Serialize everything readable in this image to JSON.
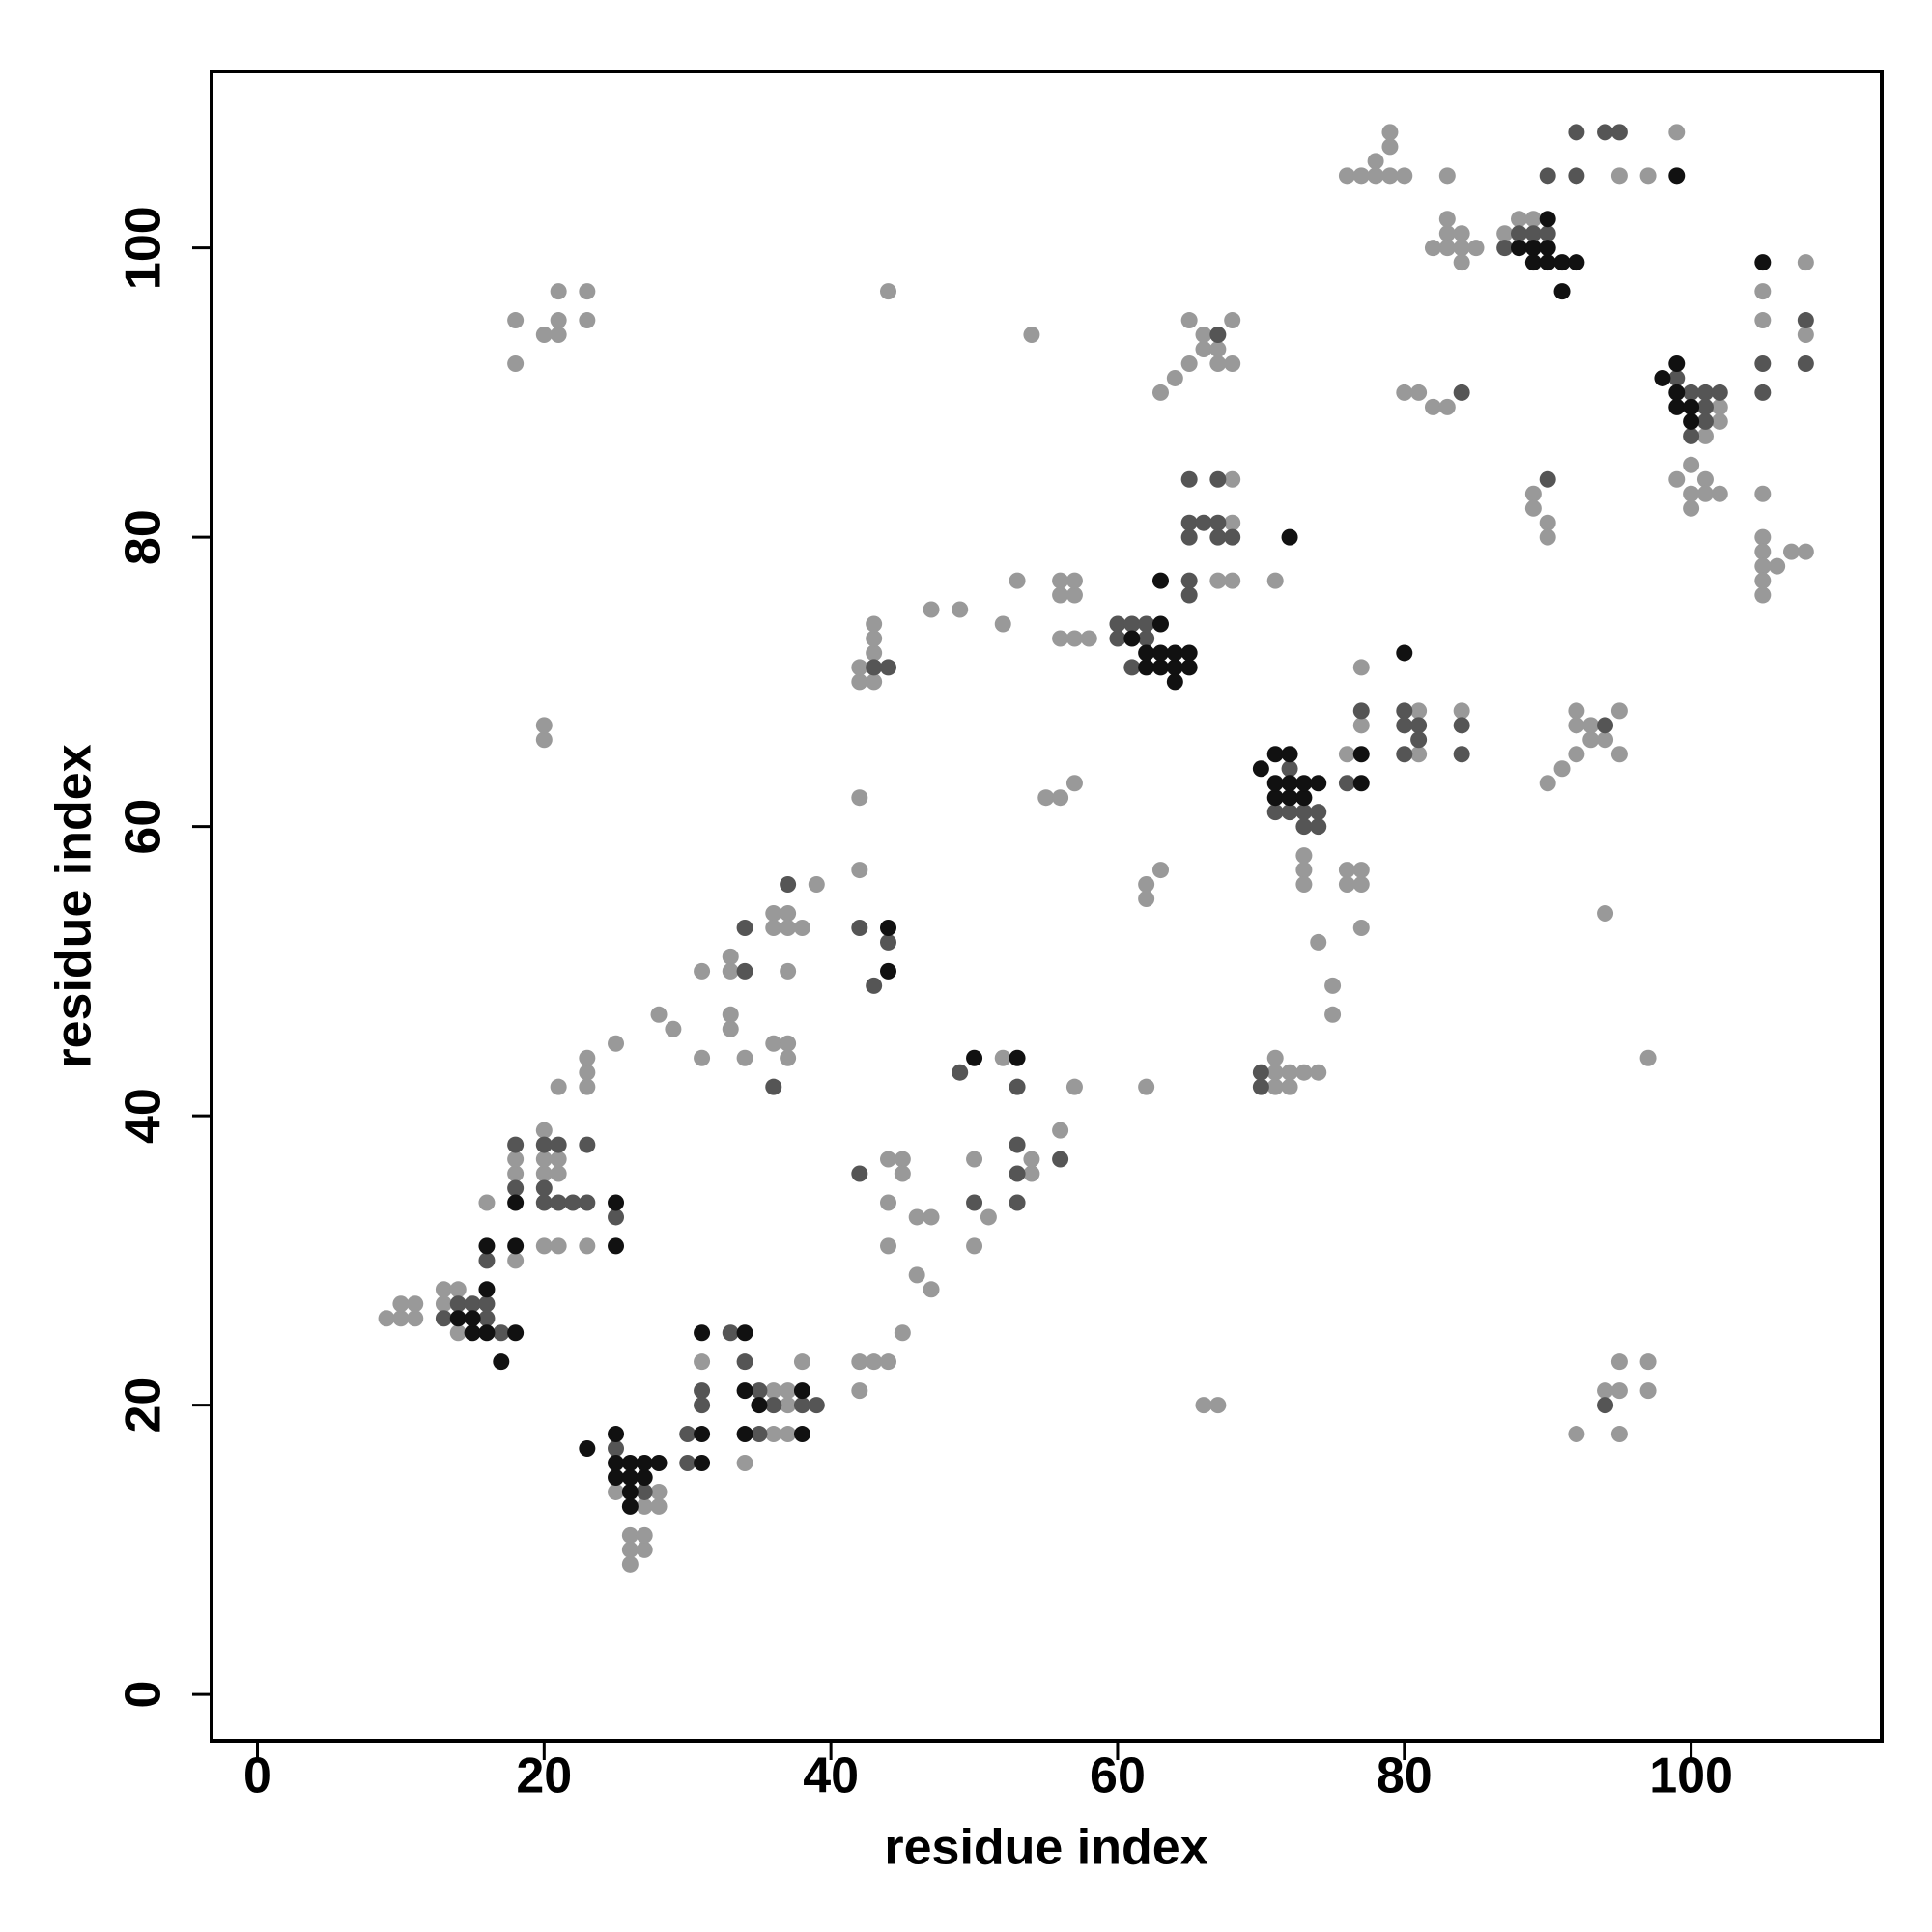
{
  "chart_data": {
    "type": "scatter",
    "xlabel": "residue index",
    "ylabel": "residue index",
    "xlim": [
      -3.2,
      113.3
    ],
    "ylim": [
      -3.2,
      112.2
    ],
    "xticks": [
      0,
      20,
      40,
      60,
      80,
      100
    ],
    "yticks": [
      0,
      20,
      40,
      60,
      80,
      100
    ],
    "grid": false,
    "series": [
      {
        "color": "#999999",
        "x": [
          9,
          10,
          10,
          11,
          11,
          13,
          13,
          14,
          14,
          18,
          16,
          18,
          18,
          20,
          21,
          23,
          20,
          20,
          21,
          21,
          20,
          26,
          26,
          26,
          27,
          27,
          27,
          28,
          28,
          25,
          31,
          34,
          36,
          36,
          37,
          37,
          37,
          38,
          23,
          23,
          23,
          21,
          25,
          28,
          29,
          31,
          31,
          33,
          33,
          33,
          33,
          34,
          36,
          36,
          37,
          37,
          38,
          39,
          37,
          36,
          37,
          37,
          42,
          42,
          42,
          42,
          43,
          43,
          43,
          43,
          44,
          47,
          49,
          52,
          53,
          56,
          56,
          57,
          57,
          56,
          57,
          58,
          44,
          45,
          45,
          44,
          44,
          46,
          47,
          46,
          47,
          45,
          42,
          43,
          44,
          42,
          50,
          51,
          50,
          52,
          54,
          54,
          56,
          57,
          55,
          56,
          57,
          54,
          62,
          62,
          62,
          63,
          63,
          64,
          65,
          65,
          66,
          66,
          67,
          67,
          68,
          68,
          68,
          68,
          67,
          68,
          71,
          73,
          73,
          73,
          74,
          75,
          75,
          71,
          72,
          71,
          71,
          72,
          73,
          74,
          66,
          67,
          76,
          77,
          77,
          76,
          77,
          76,
          77,
          77,
          81,
          81,
          84,
          76,
          77,
          78,
          78,
          79,
          79,
          79,
          80,
          83,
          83,
          83,
          83,
          82,
          84,
          84,
          84,
          85,
          80,
          81,
          82,
          83,
          89,
          89,
          90,
          90,
          87,
          88,
          89,
          95,
          97,
          99,
          101,
          102,
          102,
          99,
          100,
          101,
          100,
          100,
          101,
          102,
          105,
          105,
          108,
          108,
          105,
          105,
          105,
          105,
          105,
          105,
          106,
          107,
          108,
          90,
          91,
          92,
          92,
          92,
          93,
          94,
          95,
          95,
          93,
          94,
          97,
          92,
          94,
          95,
          95,
          95,
          97,
          97,
          18,
          18,
          20,
          21,
          21,
          21,
          23,
          23,
          20,
          20
        ],
        "values": [
          26,
          26,
          27,
          26,
          27,
          27,
          28,
          25,
          28,
          30,
          34,
          36,
          37,
          31,
          31,
          31,
          36,
          37,
          36,
          37,
          39,
          9,
          10,
          11,
          10,
          11,
          13,
          13,
          14,
          14,
          23,
          16,
          18,
          21,
          18,
          21,
          20,
          23,
          42,
          43,
          44,
          42,
          45,
          47,
          46,
          44,
          50,
          47,
          46,
          51,
          50,
          44,
          54,
          53,
          54,
          53,
          53,
          56,
          50,
          45,
          45,
          44,
          62,
          57,
          70,
          71,
          70,
          72,
          73,
          74,
          97,
          75,
          75,
          74,
          77,
          76,
          77,
          76,
          77,
          73,
          73,
          73,
          37,
          37,
          36,
          34,
          31,
          33,
          33,
          29,
          28,
          25,
          23,
          23,
          23,
          21,
          37,
          33,
          31,
          44,
          36,
          37,
          39,
          42,
          62,
          62,
          63,
          94,
          42,
          55,
          56,
          57,
          90,
          91,
          92,
          95,
          93,
          94,
          92,
          93,
          92,
          95,
          84,
          81,
          77,
          77,
          77,
          58,
          57,
          56,
          52,
          49,
          47,
          42,
          42,
          43,
          44,
          43,
          43,
          43,
          20,
          20,
          65,
          67,
          71,
          57,
          57,
          56,
          56,
          53,
          68,
          65,
          68,
          105,
          105,
          105,
          106,
          105,
          107,
          108,
          105,
          105,
          102,
          101,
          100,
          100,
          101,
          100,
          99,
          100,
          90,
          90,
          89,
          89,
          83,
          82,
          81,
          80,
          101,
          102,
          102,
          105,
          105,
          108,
          87,
          89,
          88,
          84,
          85,
          84,
          83,
          82,
          83,
          83,
          97,
          95,
          99,
          94,
          83,
          80,
          79,
          78,
          77,
          76,
          78,
          79,
          79,
          63,
          64,
          65,
          67,
          68,
          67,
          66,
          68,
          65,
          66,
          54,
          44,
          18,
          21,
          21,
          23,
          18,
          23,
          21,
          92,
          95,
          94,
          94,
          95,
          97,
          95,
          97,
          66,
          67
        ]
      },
      {
        "color": "#555555",
        "x": [
          13,
          14,
          15,
          16,
          16,
          16,
          17,
          18,
          18,
          20,
          20,
          20,
          21,
          21,
          22,
          23,
          23,
          25,
          25,
          27,
          30,
          30,
          31,
          31,
          33,
          34,
          35,
          35,
          36,
          38,
          39,
          34,
          34,
          37,
          36,
          42,
          43,
          44,
          43,
          44,
          42,
          50,
          49,
          53,
          53,
          53,
          53,
          56,
          60,
          60,
          61,
          62,
          62,
          61,
          65,
          65,
          67,
          65,
          65,
          65,
          66,
          67,
          67,
          67,
          68,
          71,
          72,
          73,
          73,
          74,
          74,
          72,
          70,
          70,
          76,
          77,
          80,
          80,
          80,
          81,
          81,
          84,
          84,
          84,
          90,
          87,
          88,
          89,
          90,
          90,
          92,
          92,
          94,
          95,
          99,
          100,
          101,
          101,
          102,
          101,
          100,
          105,
          105,
          108,
          108,
          94,
          94
        ],
        "values": [
          26,
          27,
          27,
          26,
          27,
          30,
          25,
          38,
          35,
          34,
          35,
          38,
          34,
          38,
          34,
          34,
          38,
          33,
          17,
          14,
          16,
          18,
          21,
          20,
          25,
          23,
          18,
          21,
          20,
          20,
          20,
          50,
          53,
          56,
          42,
          53,
          49,
          52,
          71,
          71,
          36,
          34,
          43,
          42,
          38,
          36,
          34,
          37,
          73,
          74,
          74,
          73,
          74,
          71,
          77,
          76,
          94,
          84,
          81,
          80,
          81,
          84,
          81,
          80,
          80,
          61,
          61,
          60,
          61,
          60,
          61,
          64,
          42,
          43,
          63,
          68,
          68,
          67,
          65,
          67,
          66,
          67,
          65,
          90,
          84,
          100,
          101,
          101,
          101,
          105,
          105,
          108,
          108,
          108,
          91,
          90,
          90,
          89,
          90,
          88,
          87,
          92,
          90,
          95,
          92,
          67,
          20
        ]
      },
      {
        "color": "#111111",
        "x": [
          14,
          15,
          15,
          16,
          16,
          17,
          18,
          18,
          18,
          25,
          25,
          16,
          23,
          25,
          25,
          25,
          26,
          26,
          26,
          27,
          28,
          26,
          27,
          31,
          31,
          31,
          34,
          34,
          34,
          35,
          38,
          38,
          44,
          44,
          50,
          53,
          61,
          62,
          62,
          63,
          63,
          63,
          64,
          64,
          65,
          65,
          64,
          63,
          72,
          70,
          71,
          71,
          72,
          72,
          72,
          73,
          73,
          74,
          71,
          77,
          77,
          80,
          88,
          89,
          89,
          90,
          91,
          92,
          91,
          90,
          90,
          99,
          98,
          99,
          99,
          99,
          100,
          100,
          105
        ],
        "values": [
          26,
          25,
          26,
          25,
          28,
          23,
          25,
          34,
          31,
          31,
          34,
          31,
          17,
          15,
          16,
          18,
          14,
          15,
          16,
          16,
          16,
          13,
          15,
          25,
          18,
          16,
          18,
          21,
          25,
          20,
          18,
          21,
          53,
          50,
          44,
          44,
          73,
          71,
          72,
          71,
          72,
          74,
          71,
          72,
          71,
          72,
          70,
          77,
          80,
          64,
          62,
          65,
          62,
          63,
          65,
          62,
          63,
          63,
          63,
          65,
          63,
          72,
          100,
          100,
          99,
          99,
          99,
          99,
          97,
          100,
          102,
          105,
          91,
          92,
          90,
          89,
          88,
          89,
          99
        ]
      }
    ]
  }
}
